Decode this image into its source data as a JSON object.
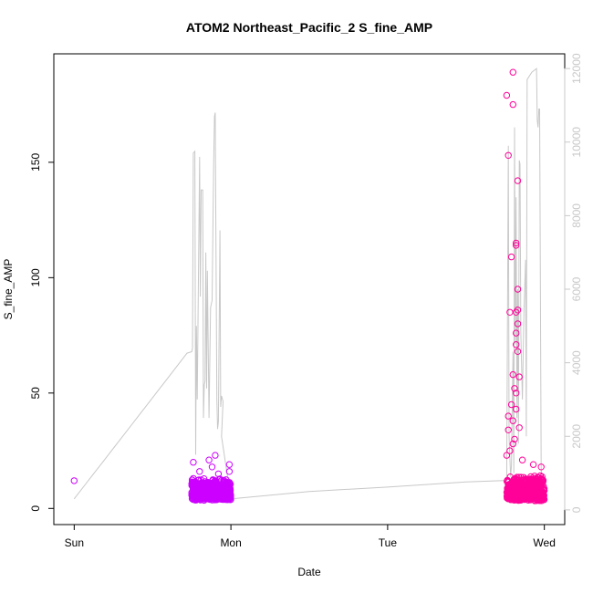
{
  "chart_data": {
    "type": "scatter",
    "title": "ATOM2 Northeast_Pacific_2 S_fine_AMP",
    "xlabel": "Date",
    "ylabel": "S_fine_AMP",
    "x_ticks": [
      "Sun",
      "Mon",
      "Tue",
      "Wed"
    ],
    "x_ticks_day": [
      0,
      1,
      2,
      3
    ],
    "xlim_day": [
      -0.13,
      3.13
    ],
    "ylim": [
      -7,
      197
    ],
    "y_ticks": [
      0,
      50,
      100,
      150
    ],
    "y2lim": [
      -400,
      12400
    ],
    "y2_ticks": [
      0,
      2000,
      4000,
      6000,
      8000,
      10000,
      12000
    ],
    "grid": false,
    "legend": "none",
    "colors": {
      "points_early": "#cc00ff",
      "points_late": "#ff0099",
      "line": "#c8c8c8",
      "frame": "#000000"
    },
    "series": [
      {
        "role": "points",
        "axis": "left",
        "clusters": [
          {
            "day_start": 0.75,
            "day_end": 1.0,
            "base_low": 2,
            "base_high": 14,
            "color_start": "#cc00ff",
            "color_end": "#cc00ff",
            "outliers": [
              [
                0.76,
                20
              ],
              [
                0.76,
                13
              ],
              [
                0.86,
                21
              ],
              [
                0.9,
                23
              ],
              [
                0.88,
                18
              ],
              [
                0.99,
                19
              ],
              [
                0.99,
                16
              ],
              [
                0.92,
                15
              ],
              [
                0.8,
                16
              ]
            ]
          },
          {
            "day_start": 2.76,
            "day_end": 3.0,
            "base_low": 1,
            "base_high": 16,
            "color_start": "#ff0099",
            "color_end": "#ff0099",
            "outliers": [
              [
                2.76,
                179
              ],
              [
                2.8,
                189
              ],
              [
                2.8,
                175
              ],
              [
                2.77,
                153
              ],
              [
                2.83,
                142
              ],
              [
                2.82,
                115
              ],
              [
                2.82,
                114
              ],
              [
                2.79,
                109
              ],
              [
                2.83,
                95
              ],
              [
                2.83,
                86
              ],
              [
                2.82,
                85
              ],
              [
                2.78,
                85
              ],
              [
                2.83,
                80
              ],
              [
                2.82,
                76
              ],
              [
                2.82,
                71
              ],
              [
                2.83,
                68
              ],
              [
                2.8,
                58
              ],
              [
                2.84,
                57
              ],
              [
                2.81,
                52
              ],
              [
                2.82,
                50
              ],
              [
                2.79,
                45
              ],
              [
                2.82,
                43
              ],
              [
                2.77,
                40
              ],
              [
                2.8,
                38
              ],
              [
                2.77,
                34
              ],
              [
                2.81,
                30
              ],
              [
                2.86,
                21
              ],
              [
                2.93,
                19
              ],
              [
                2.98,
                18
              ],
              [
                2.78,
                25
              ],
              [
                2.8,
                28
              ],
              [
                2.84,
                35
              ],
              [
                2.76,
                23
              ]
            ]
          }
        ],
        "isolated": [
          [
            0.0,
            12
          ]
        ]
      },
      {
        "role": "line",
        "axis": "right",
        "points": [
          [
            0.0,
            300
          ],
          [
            0.06,
            630
          ],
          [
            0.12,
            960
          ],
          [
            0.18,
            1290
          ],
          [
            0.24,
            1620
          ],
          [
            0.3,
            1950
          ],
          [
            0.36,
            2280
          ],
          [
            0.42,
            2610
          ],
          [
            0.48,
            2940
          ],
          [
            0.54,
            3270
          ],
          [
            0.6,
            3600
          ],
          [
            0.66,
            3930
          ],
          [
            0.72,
            4260
          ],
          [
            0.75,
            4300
          ],
          [
            0.755,
            4400
          ],
          [
            0.76,
            9700
          ],
          [
            0.77,
            9750
          ],
          [
            0.775,
            1500
          ],
          [
            0.78,
            5000
          ],
          [
            0.785,
            3000
          ],
          [
            0.8,
            9600
          ],
          [
            0.805,
            5800
          ],
          [
            0.81,
            8700
          ],
          [
            0.82,
            8700
          ],
          [
            0.825,
            2500
          ],
          [
            0.83,
            3400
          ],
          [
            0.835,
            3500
          ],
          [
            0.84,
            7000
          ],
          [
            0.845,
            3300
          ],
          [
            0.85,
            6500
          ],
          [
            0.86,
            2500
          ],
          [
            0.87,
            5500
          ],
          [
            0.88,
            5700
          ],
          [
            0.89,
            9400
          ],
          [
            0.895,
            10700
          ],
          [
            0.9,
            10800
          ],
          [
            0.905,
            6900
          ],
          [
            0.91,
            3000
          ],
          [
            0.915,
            2200
          ],
          [
            0.92,
            2400
          ],
          [
            0.93,
            7600
          ],
          [
            0.935,
            2800
          ],
          [
            0.94,
            3100
          ],
          [
            0.95,
            2950
          ],
          [
            0.94,
            2000
          ],
          [
            1.0,
            300
          ],
          [
            1.5,
            500
          ],
          [
            2.0,
            620
          ],
          [
            2.5,
            760
          ],
          [
            2.76,
            800
          ],
          [
            2.77,
            9900
          ],
          [
            2.775,
            2000
          ],
          [
            2.78,
            1400
          ],
          [
            2.785,
            900
          ],
          [
            2.79,
            1200
          ],
          [
            2.8,
            4300
          ],
          [
            2.805,
            1000
          ],
          [
            2.81,
            10400
          ],
          [
            2.815,
            4500
          ],
          [
            2.82,
            8500
          ],
          [
            2.825,
            2500
          ],
          [
            2.83,
            6000
          ],
          [
            2.835,
            1800
          ],
          [
            2.84,
            9500
          ],
          [
            2.845,
            9400
          ],
          [
            2.85,
            4800
          ],
          [
            2.86,
            3000
          ],
          [
            2.87,
            5400
          ],
          [
            2.88,
            6800
          ],
          [
            2.885,
            2000
          ],
          [
            2.89,
            11700
          ],
          [
            2.92,
            11900
          ],
          [
            2.95,
            12000
          ],
          [
            2.955,
            10600
          ],
          [
            2.96,
            10400
          ],
          [
            2.965,
            10900
          ],
          [
            2.97,
            10900
          ],
          [
            2.98,
            1100
          ],
          [
            2.99,
            700
          ],
          [
            3.0,
            600
          ]
        ]
      }
    ]
  }
}
